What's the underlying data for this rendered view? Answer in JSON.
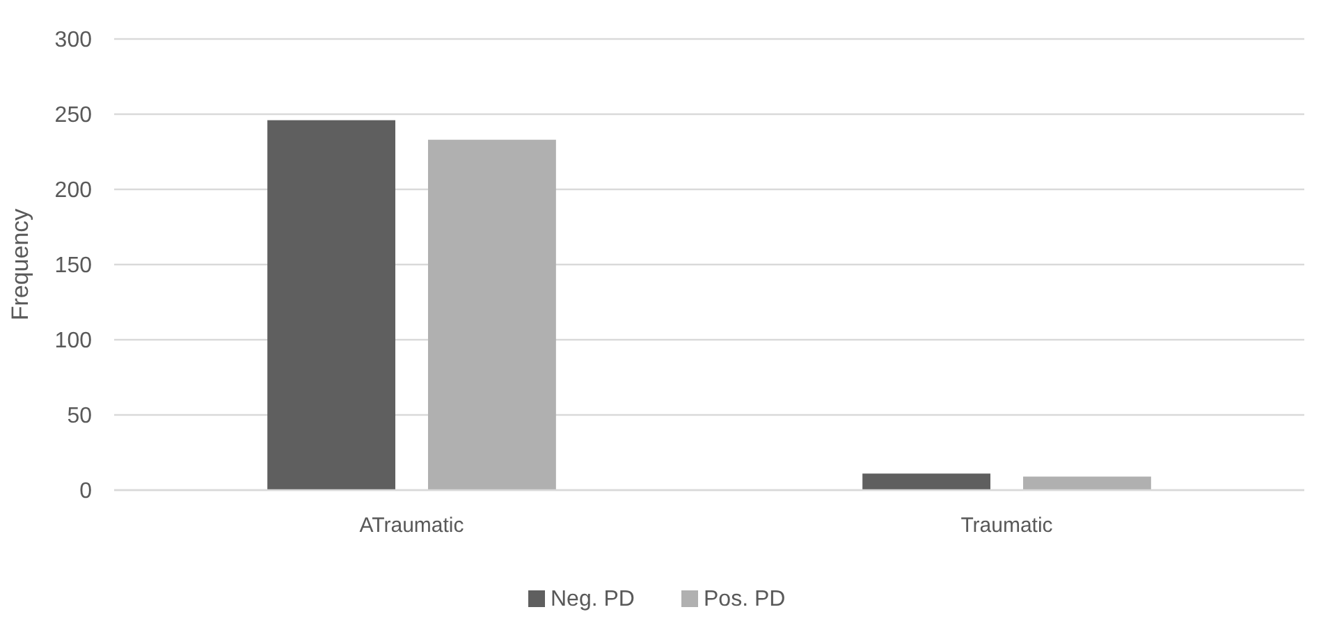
{
  "chart_data": {
    "type": "bar",
    "ylabel": "Frequency",
    "categories": [
      "ATraumatic",
      "Traumatic"
    ],
    "series": [
      {
        "name": "Neg. PD",
        "color": "#5f5f5f",
        "values": [
          246,
          11
        ]
      },
      {
        "name": "Pos. PD",
        "color": "#b0b0b0",
        "values": [
          233,
          9
        ]
      }
    ],
    "ylim": [
      0,
      300
    ],
    "yticks": [
      0,
      50,
      100,
      150,
      200,
      250,
      300
    ],
    "grid": "y",
    "legend": "bottom"
  }
}
